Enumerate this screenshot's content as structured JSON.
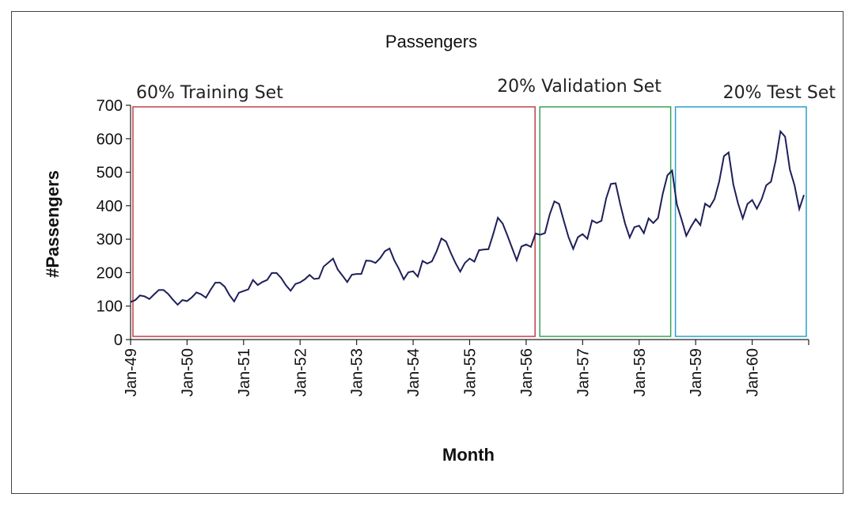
{
  "chart_data": {
    "type": "line",
    "title": "Passengers",
    "xlabel": "Month",
    "ylabel": "#Passengers",
    "ylim": [
      0,
      700
    ],
    "yticks": [
      0,
      100,
      200,
      300,
      400,
      500,
      600,
      700
    ],
    "x_tick_labels": [
      "Jan-49",
      "Jan-50",
      "Jan-51",
      "Jan-52",
      "Jan-53",
      "Jan-54",
      "Jan-55",
      "Jan-56",
      "Jan-57",
      "Jan-58",
      "Jan-59",
      "Jan-60"
    ],
    "grid": false,
    "line_color": "#1f1f5a",
    "series": [
      {
        "values": [
          112,
          118,
          132,
          129,
          121,
          135,
          148,
          148,
          136,
          119,
          104,
          118,
          115,
          126,
          141,
          135,
          125,
          149,
          170,
          170,
          158,
          133,
          114,
          140,
          145,
          150,
          178,
          163,
          172,
          178,
          199,
          199,
          184,
          162,
          146,
          166,
          171,
          180,
          193,
          181,
          183,
          218,
          230,
          242,
          209,
          191,
          172,
          194,
          196,
          196,
          236,
          235,
          229,
          243,
          264,
          272,
          237,
          211,
          180,
          201,
          204,
          188,
          235,
          227,
          234,
          264,
          302,
          293,
          259,
          229,
          203,
          229,
          242,
          233,
          267,
          269,
          270,
          315,
          364,
          347,
          312,
          274,
          237,
          278,
          284,
          277,
          317,
          313,
          318,
          374,
          413,
          405,
          355,
          306,
          271,
          306,
          315,
          301,
          356,
          348,
          355,
          422,
          465,
          467,
          404,
          347,
          305,
          336,
          340,
          318,
          362,
          348,
          363,
          435,
          491,
          505,
          404,
          359,
          310,
          337,
          360,
          342,
          406,
          396,
          420,
          472,
          548,
          559,
          463,
          407,
          362,
          405,
          417,
          391,
          419,
          461,
          472,
          535,
          622,
          606,
          508,
          461,
          390,
          432
        ]
      }
    ],
    "regions": [
      {
        "label": "60% Training Set",
        "color": "#c0404a",
        "fraction": 0.6
      },
      {
        "label": "20% Validation Set",
        "color": "#3aa05a",
        "fraction": 0.2
      },
      {
        "label": "20% Test Set",
        "color": "#2aa0c8",
        "fraction": 0.2
      }
    ]
  }
}
